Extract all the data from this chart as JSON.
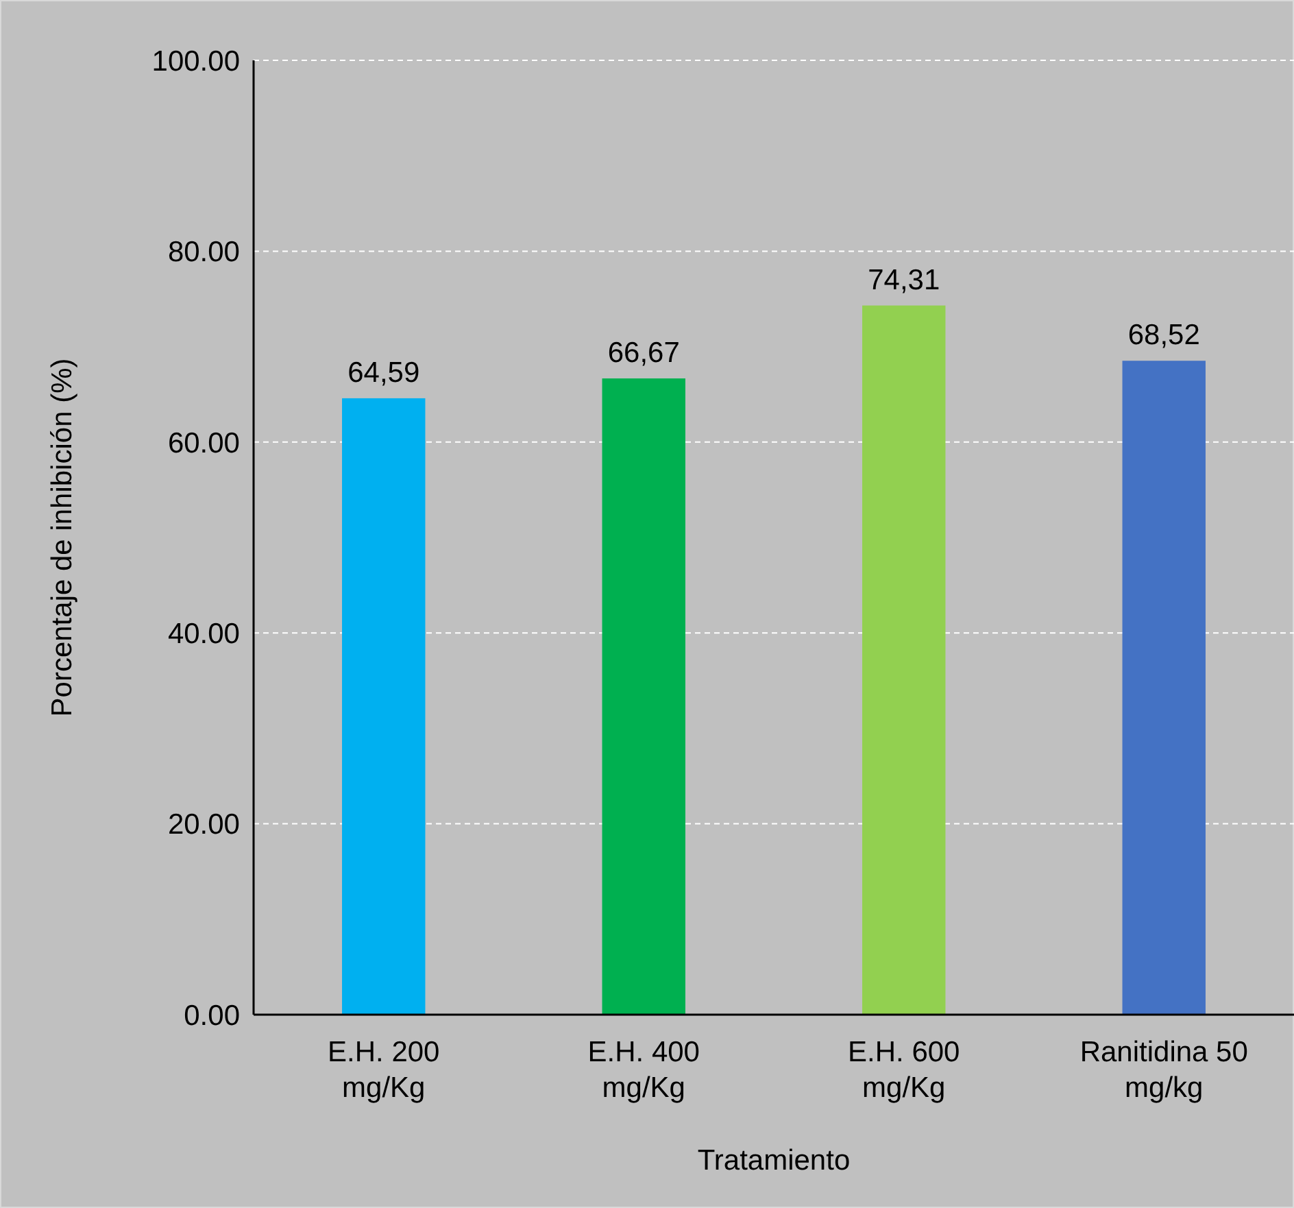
{
  "chart_data": {
    "type": "bar",
    "xlabel": "Tratamiento",
    "ylabel": "Porcentaje de inhibición (%)",
    "categories": [
      "E.H. 200 mg/Kg",
      "E.H. 400 mg/Kg",
      "E.H. 600 mg/Kg",
      "Ranitidina 50 mg/kg"
    ],
    "values": [
      64.59,
      66.67,
      74.31,
      68.52
    ],
    "colors": [
      "#00b0f0",
      "#00b050",
      "#92d050",
      "#4472c4"
    ],
    "value_labels": [
      "64,59",
      "66,67",
      "74,31",
      "68,52"
    ],
    "ylim": [
      0,
      100
    ],
    "yticks": [
      {
        "value": 0,
        "label": "0.00"
      },
      {
        "value": 20,
        "label": "20.00"
      },
      {
        "value": 40,
        "label": "40.00"
      },
      {
        "value": 60,
        "label": "60.00"
      },
      {
        "value": 80,
        "label": "80.00"
      },
      {
        "value": 100,
        "label": "100.00"
      }
    ],
    "grid": "y"
  }
}
